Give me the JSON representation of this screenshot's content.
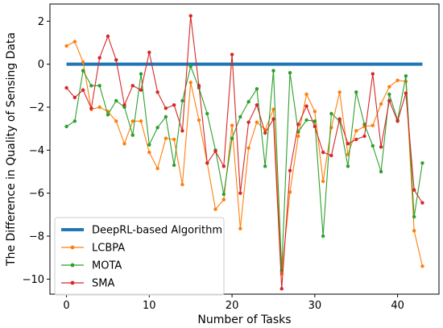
{
  "chart_data": {
    "type": "line",
    "title": "",
    "xlabel": "Number of Tasks",
    "ylabel": "The Difference in Quality of Sensing Data",
    "xlim": [
      -2,
      45
    ],
    "ylim": [
      -10.7,
      2.8
    ],
    "xticks": [
      0,
      10,
      20,
      30,
      40
    ],
    "yticks": [
      2,
      0,
      -2,
      -4,
      -6,
      -8,
      -10
    ],
    "xtick_labels": [
      "0",
      "10",
      "20",
      "30",
      "40"
    ],
    "ytick_labels": [
      "2",
      "0",
      "−2",
      "−4",
      "−6",
      "−8",
      "−10"
    ],
    "grid": false,
    "legend_position": "lower-left",
    "series": [
      {
        "name": "DeepRL-based Algorithm",
        "color": "#1f77b4",
        "style": "thick-line",
        "x": [
          0,
          43
        ],
        "values": [
          0,
          0
        ]
      },
      {
        "name": "LCBPA",
        "color": "#ff7f0e",
        "style": "line-marker",
        "values": [
          0.85,
          1.05,
          0.1,
          -2.1,
          -2.0,
          -2.2,
          -2.65,
          -3.7,
          -2.65,
          -2.65,
          -4.1,
          -4.85,
          -3.45,
          -3.5,
          -5.6,
          -0.85,
          -2.6,
          -4.6,
          -6.75,
          -6.3,
          -2.85,
          -7.65,
          -3.9,
          -2.7,
          -3.05,
          -2.1,
          -9.75,
          -5.95,
          -3.35,
          -1.4,
          -2.2,
          -5.45,
          -2.95,
          -1.3,
          -4.2,
          -3.1,
          -2.9,
          -2.85,
          -1.85,
          -1.05,
          -0.75,
          -0.8,
          -7.75,
          -9.4
        ]
      },
      {
        "name": "MOTA",
        "color": "#2ca02c",
        "style": "line-marker",
        "values": [
          -2.9,
          -2.65,
          -0.3,
          -1.0,
          -1.0,
          -2.35,
          -1.7,
          -2.0,
          -3.3,
          -0.45,
          -3.75,
          -2.95,
          -2.45,
          -4.7,
          -1.7,
          -0.1,
          -1.1,
          -2.3,
          -4.0,
          -6.05,
          -3.45,
          -2.45,
          -1.75,
          -1.15,
          -4.75,
          -0.3,
          -9.6,
          -0.4,
          -3.15,
          -2.6,
          -2.65,
          -8.0,
          -2.3,
          -2.65,
          -4.75,
          -1.3,
          -2.8,
          -3.8,
          -5.0,
          -1.4,
          -2.6,
          -0.55,
          -7.1,
          -4.6
        ]
      },
      {
        "name": "SMA",
        "color": "#d62728",
        "style": "line-marker",
        "values": [
          -1.1,
          -1.55,
          -1.2,
          -2.05,
          0.3,
          1.3,
          0.2,
          -1.9,
          -1.0,
          -1.2,
          0.55,
          -1.3,
          -2.05,
          -1.9,
          -3.1,
          2.25,
          -1.0,
          -4.6,
          -4.05,
          -4.75,
          0.45,
          -6.0,
          -2.7,
          -1.9,
          -3.2,
          -2.55,
          -10.45,
          -4.95,
          -2.8,
          -1.95,
          -2.9,
          -4.1,
          -4.25,
          -2.55,
          -3.7,
          -3.5,
          -3.35,
          -0.45,
          -3.85,
          -1.7,
          -2.65,
          -1.35,
          -5.85,
          -6.45
        ]
      }
    ]
  }
}
